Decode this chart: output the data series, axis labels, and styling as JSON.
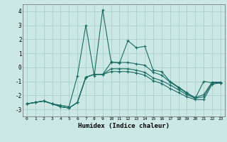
{
  "xlabel": "Humidex (Indice chaleur)",
  "ylabel": "",
  "background_color": "#cce8e4",
  "grid_color": "#aacfca",
  "line_color": "#1a6b65",
  "x": [
    0,
    1,
    2,
    3,
    4,
    5,
    6,
    7,
    8,
    9,
    10,
    11,
    12,
    13,
    14,
    15,
    16,
    17,
    18,
    19,
    20,
    21,
    22,
    23
  ],
  "line1": [
    -2.6,
    -2.5,
    -2.4,
    -2.6,
    -2.7,
    -2.8,
    -0.6,
    3.0,
    -0.6,
    4.1,
    0.4,
    0.3,
    1.9,
    1.4,
    1.5,
    -0.2,
    -0.3,
    -1.0,
    -1.4,
    -1.8,
    -2.2,
    -1.0,
    -1.1,
    -1.1
  ],
  "line2": [
    -2.6,
    -2.5,
    -2.4,
    -2.6,
    -2.8,
    -2.9,
    -2.5,
    -0.7,
    -0.5,
    -0.5,
    0.35,
    0.35,
    0.35,
    0.25,
    0.15,
    -0.35,
    -0.55,
    -1.05,
    -1.45,
    -1.85,
    -2.15,
    -1.95,
    -1.05,
    -1.05
  ],
  "line3": [
    -2.6,
    -2.5,
    -2.4,
    -2.6,
    -2.8,
    -2.9,
    -2.5,
    -0.7,
    -0.5,
    -0.5,
    -0.1,
    -0.1,
    -0.1,
    -0.2,
    -0.35,
    -0.75,
    -0.95,
    -1.25,
    -1.6,
    -1.95,
    -2.2,
    -2.1,
    -1.1,
    -1.1
  ],
  "line4": [
    -2.6,
    -2.5,
    -2.4,
    -2.6,
    -2.8,
    -2.9,
    -2.5,
    -0.7,
    -0.5,
    -0.5,
    -0.3,
    -0.3,
    -0.3,
    -0.4,
    -0.55,
    -0.95,
    -1.15,
    -1.5,
    -1.8,
    -2.1,
    -2.3,
    -2.3,
    -1.2,
    -1.1
  ],
  "ylim": [
    -3.5,
    4.5
  ],
  "xlim": [
    -0.5,
    23.5
  ],
  "yticks": [
    -3,
    -2,
    -1,
    0,
    1,
    2,
    3,
    4
  ],
  "xticks": [
    0,
    1,
    2,
    3,
    4,
    5,
    6,
    7,
    8,
    9,
    10,
    11,
    12,
    13,
    14,
    15,
    16,
    17,
    18,
    19,
    20,
    21,
    22,
    23
  ]
}
